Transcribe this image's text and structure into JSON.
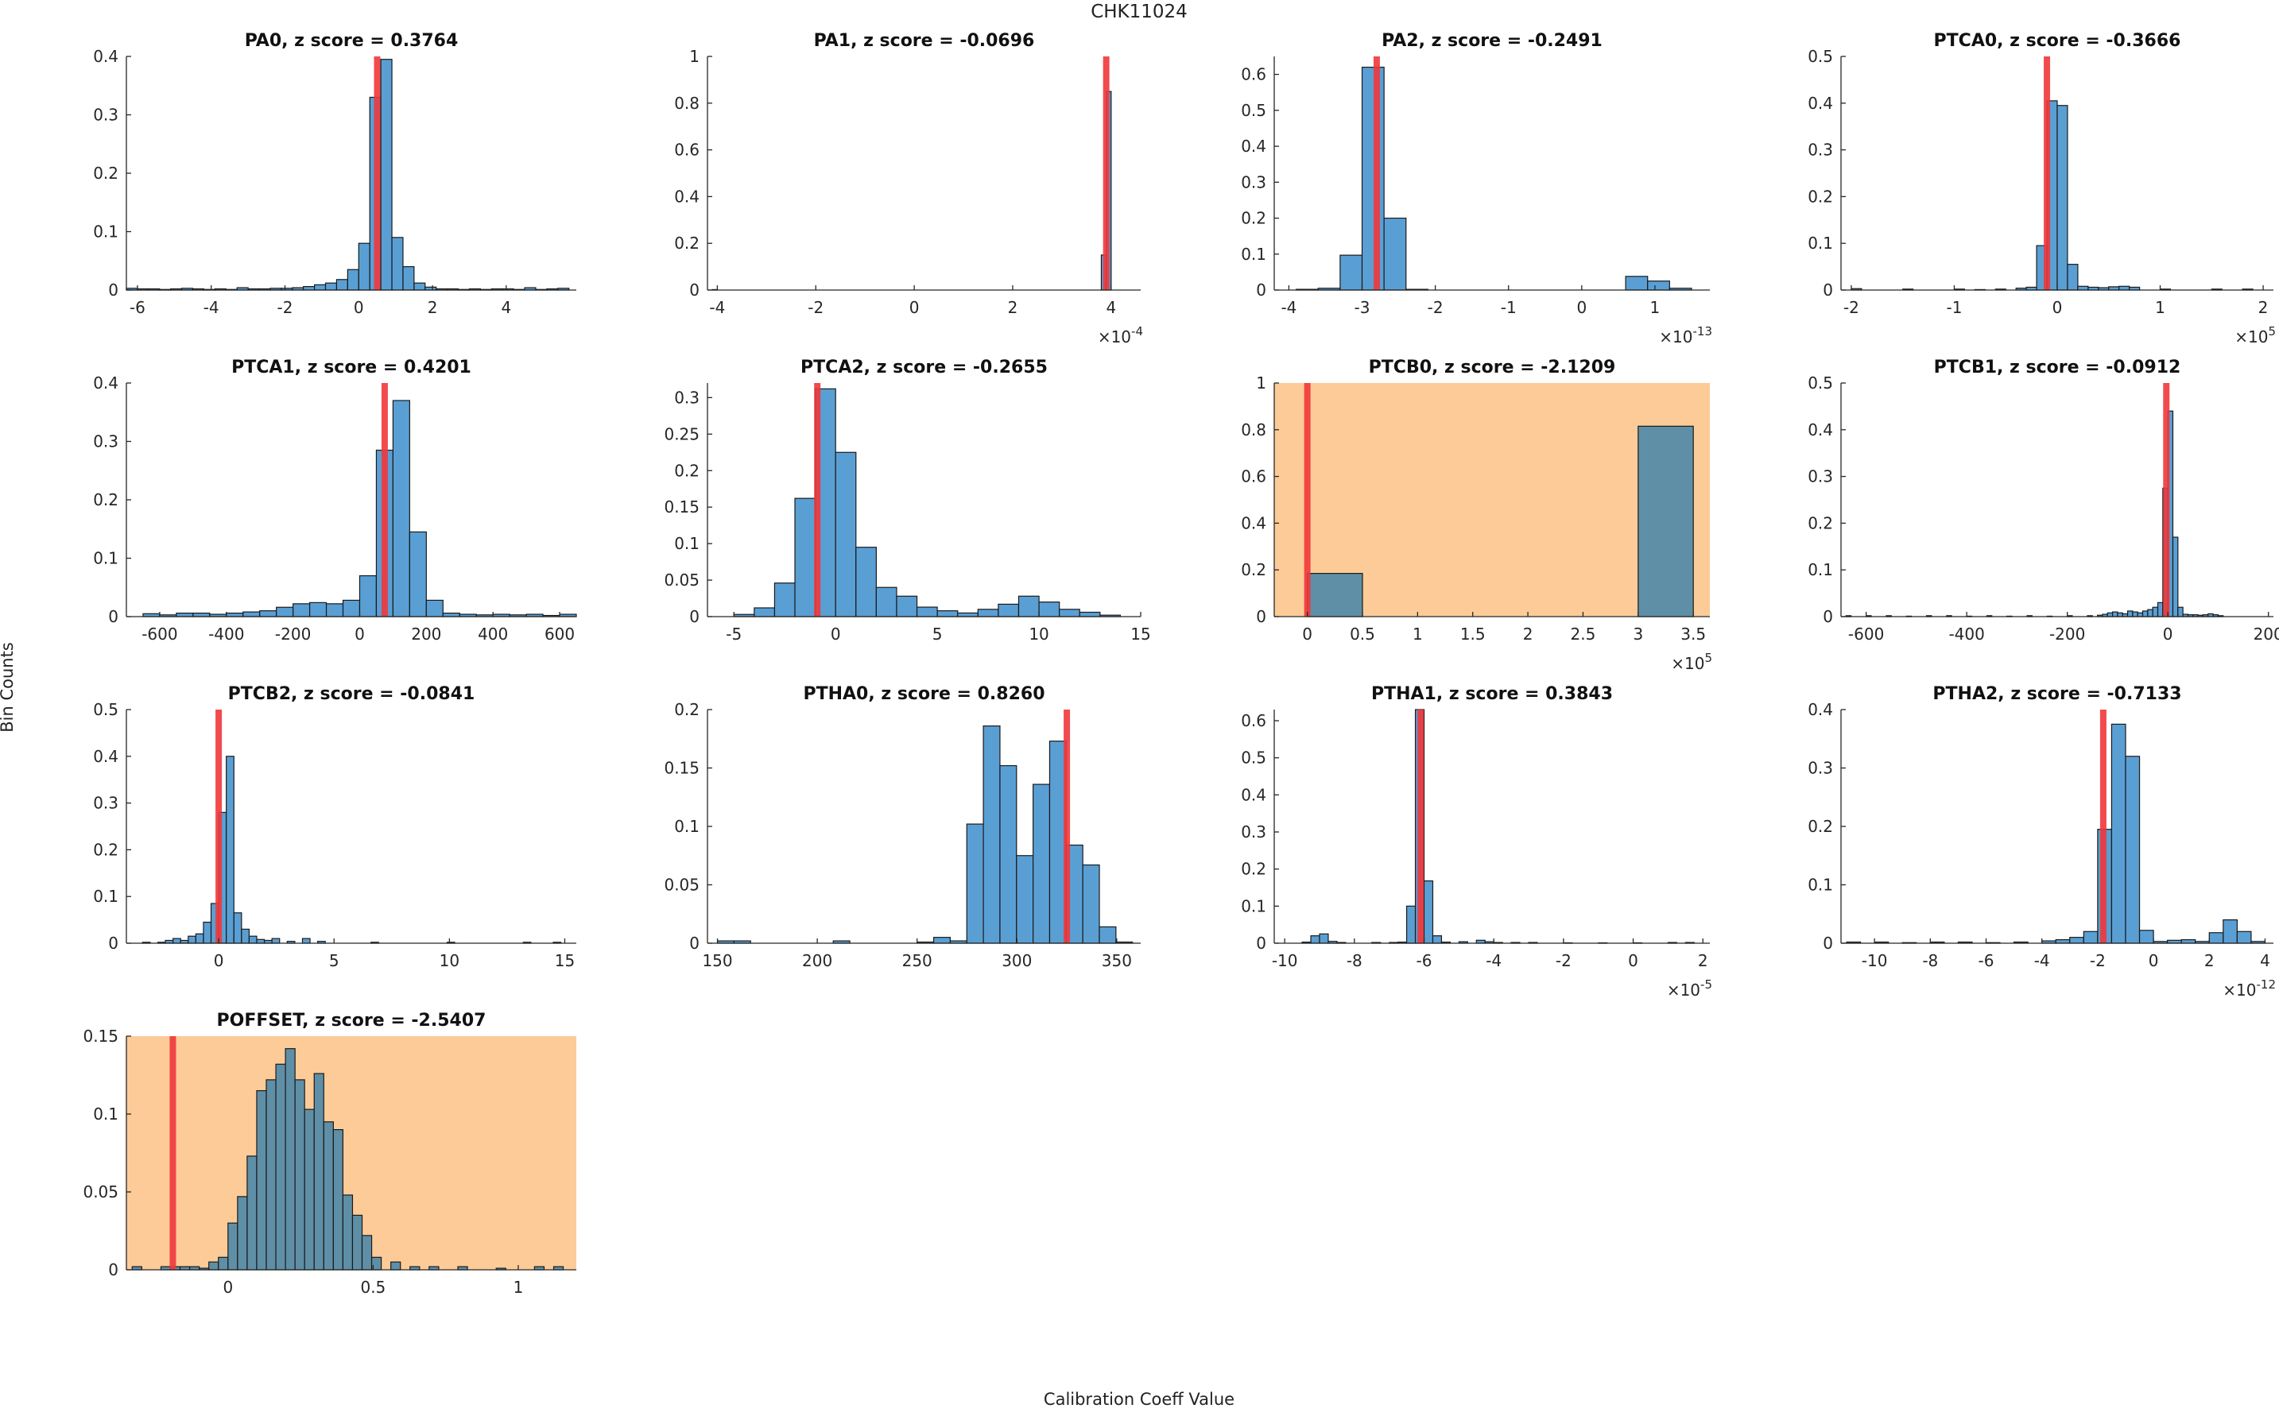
{
  "figure": {
    "title": "CHK11024",
    "xlabel": "Calibration Coeff Value",
    "ylabel": "Bin Counts"
  },
  "colors": {
    "bar_fill": "#5a9fd4",
    "bar_edge": "#1a1a1a",
    "highlight_bg": "#fdcb97",
    "highlight_bar": "#5f8fa6",
    "marker": "#f0373b"
  },
  "chart_data": [
    {
      "type": "bar",
      "title": "PA0, z score = 0.3764",
      "xlim": [
        -6.3,
        5.9
      ],
      "ylim": [
        0,
        0.4
      ],
      "xticks": [
        -6,
        -4,
        -2,
        0,
        2,
        4
      ],
      "xtick_labels": [
        "-6",
        "-4",
        "-2",
        "0",
        "2",
        "4"
      ],
      "yticks": [
        0,
        0.1,
        0.2,
        0.3,
        0.4
      ],
      "ytick_labels": [
        "0",
        "0.1",
        "0.2",
        "0.3",
        "0.4"
      ],
      "bin_width": 0.3,
      "bins_x": [
        -6.3,
        -6.0,
        -5.7,
        -5.4,
        -5.1,
        -4.8,
        -4.5,
        -4.2,
        -3.9,
        -3.6,
        -3.3,
        -3.0,
        -2.7,
        -2.4,
        -2.1,
        -1.8,
        -1.5,
        -1.2,
        -0.9,
        -0.6,
        -0.3,
        0.0,
        0.3,
        0.6,
        0.9,
        1.2,
        1.5,
        1.8,
        2.1,
        2.4,
        2.7,
        3.0,
        3.3,
        3.6,
        3.9,
        4.2,
        4.5,
        4.8,
        5.1,
        5.4
      ],
      "values": [
        0.003,
        0.002,
        0.002,
        0.001,
        0.002,
        0.003,
        0.002,
        0.001,
        0.002,
        0.001,
        0.004,
        0.002,
        0.002,
        0.003,
        0.003,
        0.004,
        0.006,
        0.009,
        0.012,
        0.018,
        0.035,
        0.08,
        0.33,
        0.395,
        0.09,
        0.04,
        0.012,
        0.005,
        0.002,
        0.002,
        0.001,
        0.002,
        0.001,
        0.002,
        0.002,
        0.001,
        0.004,
        0.001,
        0.002,
        0.003
      ],
      "marker_x": 0.5,
      "highlight": false
    },
    {
      "type": "bar",
      "title": "PA1, z score = -0.0696",
      "xlim": [
        -4.2,
        4.6
      ],
      "ylim": [
        0,
        1
      ],
      "xticks": [
        -4,
        -2,
        0,
        2,
        4
      ],
      "xtick_labels": [
        "-4",
        "-2",
        "0",
        "2",
        "4"
      ],
      "yticks": [
        0,
        0.2,
        0.4,
        0.6,
        0.8,
        1
      ],
      "ytick_labels": [
        "0",
        "0.2",
        "0.4",
        "0.6",
        "0.8",
        "1"
      ],
      "xexponent": "-4",
      "bin_width": 0.1,
      "bins_x": [
        -4.1,
        3.8,
        3.9
      ],
      "values": [
        0.002,
        0.15,
        0.85
      ],
      "marker_x": 3.9,
      "highlight": false
    },
    {
      "type": "bar",
      "title": "PA2, z score = -0.2491",
      "xlim": [
        -4.2,
        1.75
      ],
      "ylim": [
        0,
        0.65
      ],
      "xticks": [
        -4,
        -3,
        -2,
        -1,
        0,
        1
      ],
      "xtick_labels": [
        "-4",
        "-3",
        "-2",
        "-1",
        "0",
        "1"
      ],
      "yticks": [
        0,
        0.1,
        0.2,
        0.3,
        0.4,
        0.5,
        0.6
      ],
      "ytick_labels": [
        "0",
        "0.1",
        "0.2",
        "0.3",
        "0.4",
        "0.5",
        "0.6"
      ],
      "xexponent": "-13",
      "bin_width": 0.3,
      "bins_x": [
        -3.9,
        -3.6,
        -3.3,
        -3.0,
        -2.7,
        -2.4,
        0.6,
        0.9,
        1.2
      ],
      "values": [
        0.002,
        0.005,
        0.097,
        0.62,
        0.2,
        0.002,
        0.038,
        0.025,
        0.005
      ],
      "marker_x": -2.8,
      "highlight": false
    },
    {
      "type": "bar",
      "title": "PTCA0, z score = -0.3666",
      "xlim": [
        -2.1,
        2.1
      ],
      "ylim": [
        0,
        0.5
      ],
      "xticks": [
        -2,
        -1,
        0,
        1,
        2
      ],
      "xtick_labels": [
        "-2",
        "-1",
        "0",
        "1",
        "2"
      ],
      "yticks": [
        0,
        0.1,
        0.2,
        0.3,
        0.4,
        0.5
      ],
      "ytick_labels": [
        "0",
        "0.1",
        "0.2",
        "0.3",
        "0.4",
        "0.5"
      ],
      "xexponent": "5",
      "bin_width": 0.1,
      "bins_x": [
        -2.0,
        -1.5,
        -1.0,
        -0.8,
        -0.6,
        -0.4,
        -0.3,
        -0.2,
        -0.1,
        0.0,
        0.1,
        0.2,
        0.3,
        0.4,
        0.5,
        0.6,
        0.7,
        1.0,
        1.5,
        1.8
      ],
      "values": [
        0.003,
        0.002,
        0.002,
        0.001,
        0.002,
        0.004,
        0.006,
        0.095,
        0.405,
        0.395,
        0.055,
        0.008,
        0.006,
        0.005,
        0.007,
        0.008,
        0.006,
        0.002,
        0.002,
        0.002
      ],
      "marker_x": -0.1,
      "highlight": false
    },
    {
      "type": "bar",
      "title": "PTCA1, z score = 0.4201",
      "xlim": [
        -700,
        650
      ],
      "ylim": [
        0,
        0.4
      ],
      "xticks": [
        -600,
        -400,
        -200,
        0,
        200,
        400,
        600
      ],
      "xtick_labels": [
        "-600",
        "-400",
        "-200",
        "0",
        "200",
        "400",
        "600"
      ],
      "yticks": [
        0,
        0.1,
        0.2,
        0.3,
        0.4
      ],
      "ytick_labels": [
        "0",
        "0.1",
        "0.2",
        "0.3",
        "0.4"
      ],
      "bin_width": 50,
      "bins_x": [
        -650,
        -600,
        -550,
        -500,
        -450,
        -400,
        -350,
        -300,
        -250,
        -200,
        -150,
        -100,
        -50,
        0,
        50,
        100,
        150,
        200,
        250,
        300,
        350,
        400,
        450,
        500,
        550,
        600
      ],
      "values": [
        0.005,
        0.003,
        0.006,
        0.006,
        0.004,
        0.006,
        0.008,
        0.01,
        0.016,
        0.022,
        0.024,
        0.022,
        0.028,
        0.07,
        0.285,
        0.37,
        0.145,
        0.028,
        0.006,
        0.004,
        0.003,
        0.004,
        0.003,
        0.004,
        0.002,
        0.004
      ],
      "marker_x": 75,
      "highlight": false
    },
    {
      "type": "bar",
      "title": "PTCA2, z score = -0.2655",
      "xlim": [
        -6.3,
        15
      ],
      "ylim": [
        0,
        0.32
      ],
      "xticks": [
        -5,
        0,
        5,
        10,
        15
      ],
      "xtick_labels": [
        "-5",
        "0",
        "5",
        "10",
        "15"
      ],
      "yticks": [
        0,
        0.05,
        0.1,
        0.15,
        0.2,
        0.25,
        0.3
      ],
      "ytick_labels": [
        "0",
        "0.05",
        "0.1",
        "0.15",
        "0.2",
        "0.25",
        "0.3"
      ],
      "bin_width": 1,
      "bins_x": [
        -5,
        -4,
        -3,
        -2,
        -1,
        0,
        1,
        2,
        3,
        4,
        5,
        6,
        7,
        8,
        9,
        10,
        11,
        12,
        13
      ],
      "values": [
        0.003,
        0.012,
        0.046,
        0.162,
        0.312,
        0.225,
        0.095,
        0.04,
        0.028,
        0.013,
        0.008,
        0.005,
        0.01,
        0.017,
        0.028,
        0.02,
        0.01,
        0.006,
        0.002
      ],
      "marker_x": -0.9,
      "highlight": false
    },
    {
      "type": "bar",
      "title": "PTCB0, z score = -2.1209",
      "xlim": [
        -0.3,
        3.65
      ],
      "ylim": [
        0,
        1
      ],
      "xticks": [
        0,
        0.5,
        1,
        1.5,
        2,
        2.5,
        3,
        3.5
      ],
      "xtick_labels": [
        "0",
        "0.5",
        "1",
        "1.5",
        "2",
        "2.5",
        "3",
        "3.5"
      ],
      "yticks": [
        0,
        0.2,
        0.4,
        0.6,
        0.8,
        1
      ],
      "ytick_labels": [
        "0",
        "0.2",
        "0.4",
        "0.6",
        "0.8",
        "1"
      ],
      "xexponent": "5",
      "bin_width": 0.5,
      "bins_x": [
        0,
        3
      ],
      "values": [
        0.185,
        0.815
      ],
      "marker_x": 0,
      "highlight": true
    },
    {
      "type": "bar",
      "title": "PTCB1, z score = -0.0912",
      "xlim": [
        -650,
        210
      ],
      "ylim": [
        0,
        0.5
      ],
      "xticks": [
        -600,
        -400,
        -200,
        0,
        200
      ],
      "xtick_labels": [
        "-600",
        "-400",
        "-200",
        "0",
        "200"
      ],
      "yticks": [
        0,
        0.1,
        0.2,
        0.3,
        0.4,
        0.5
      ],
      "ytick_labels": [
        "0",
        "0.1",
        "0.2",
        "0.3",
        "0.4",
        "0.5"
      ],
      "bin_width": 10,
      "bins_x": [
        -640,
        -600,
        -560,
        -520,
        -480,
        -440,
        -400,
        -360,
        -320,
        -280,
        -240,
        -200,
        -160,
        -140,
        -130,
        -120,
        -110,
        -100,
        -90,
        -80,
        -70,
        -60,
        -50,
        -40,
        -30,
        -20,
        -10,
        0,
        10,
        20,
        30,
        40,
        50,
        60,
        70,
        80,
        90,
        100
      ],
      "values": [
        0.002,
        0.002,
        0.002,
        0.001,
        0.002,
        0.002,
        0.001,
        0.002,
        0.001,
        0.002,
        0.001,
        0.002,
        0.002,
        0.003,
        0.005,
        0.008,
        0.01,
        0.008,
        0.006,
        0.012,
        0.01,
        0.008,
        0.012,
        0.015,
        0.02,
        0.03,
        0.275,
        0.44,
        0.17,
        0.02,
        0.005,
        0.004,
        0.004,
        0.003,
        0.004,
        0.006,
        0.004,
        0.002
      ],
      "marker_x": -3,
      "highlight": false
    },
    {
      "type": "bar",
      "title": "PTCB2, z score = -0.0841",
      "xlim": [
        -4,
        15.5
      ],
      "ylim": [
        0,
        0.5
      ],
      "xticks": [
        0,
        5,
        10,
        15
      ],
      "xtick_labels": [
        "0",
        "5",
        "10",
        "15"
      ],
      "yticks": [
        0,
        0.1,
        0.2,
        0.3,
        0.4,
        0.5
      ],
      "ytick_labels": [
        "0",
        "0.1",
        "0.2",
        "0.3",
        "0.4",
        "0.5"
      ],
      "bin_width": 0.33,
      "bins_x": [
        -3.3,
        -2.64,
        -2.31,
        -1.98,
        -1.65,
        -1.32,
        -0.99,
        -0.66,
        -0.33,
        0,
        0.33,
        0.66,
        0.99,
        1.32,
        1.65,
        1.98,
        2.31,
        2.97,
        3.63,
        4.29,
        6.6,
        9.9,
        13.2,
        14.5
      ],
      "values": [
        0.002,
        0.002,
        0.006,
        0.01,
        0.006,
        0.015,
        0.02,
        0.045,
        0.085,
        0.28,
        0.4,
        0.065,
        0.03,
        0.015,
        0.008,
        0.006,
        0.01,
        0.004,
        0.01,
        0.004,
        0.002,
        0.002,
        0.002,
        0.002
      ],
      "marker_x": 0,
      "highlight": false
    },
    {
      "type": "bar",
      "title": "PTHA0, z score = 0.8260",
      "xlim": [
        145,
        362
      ],
      "ylim": [
        0,
        0.2
      ],
      "xticks": [
        150,
        200,
        250,
        300,
        350
      ],
      "xtick_labels": [
        "150",
        "200",
        "250",
        "300",
        "350"
      ],
      "yticks": [
        0,
        0.05,
        0.1,
        0.15,
        0.2
      ],
      "ytick_labels": [
        "0",
        "0.05",
        "0.1",
        "0.15",
        "0.2"
      ],
      "bin_width": 8.3,
      "bins_x": [
        150,
        158.3,
        208,
        250,
        258.3,
        266.6,
        274.9,
        283.2,
        291.5,
        299.8,
        308.1,
        316.4,
        324.7,
        333,
        341.3,
        349.6
      ],
      "values": [
        0.002,
        0.002,
        0.002,
        0.001,
        0.005,
        0.002,
        0.102,
        0.186,
        0.152,
        0.075,
        0.136,
        0.173,
        0.084,
        0.067,
        0.014,
        0.001
      ],
      "marker_x": 325,
      "highlight": false
    },
    {
      "type": "bar",
      "title": "PTHA1, z score = 0.3843",
      "xlim": [
        -10.3,
        2.2
      ],
      "ylim": [
        0,
        0.63
      ],
      "xticks": [
        -10,
        -8,
        -6,
        -4,
        -2,
        0,
        2
      ],
      "xtick_labels": [
        "-10",
        "-8",
        "-6",
        "-4",
        "-2",
        "0",
        "2"
      ],
      "yticks": [
        0,
        0.1,
        0.2,
        0.3,
        0.4,
        0.5,
        0.6
      ],
      "ytick_labels": [
        "0",
        "0.1",
        "0.2",
        "0.3",
        "0.4",
        "0.5",
        "0.6"
      ],
      "xexponent": "-5",
      "bin_width": 0.25,
      "bins_x": [
        -9.5,
        -9.25,
        -9.0,
        -8.75,
        -8.5,
        -7.5,
        -7.0,
        -6.75,
        -6.5,
        -6.25,
        -6.0,
        -5.75,
        -5.5,
        -5.0,
        -4.5,
        -4.25,
        -4.0,
        -3.5,
        -3.0,
        -2.0,
        -1.0,
        0.0,
        1.0,
        1.5
      ],
      "values": [
        0.003,
        0.02,
        0.025,
        0.005,
        0.002,
        0.002,
        0.002,
        0.003,
        0.1,
        0.63,
        0.168,
        0.02,
        0.003,
        0.004,
        0.008,
        0.004,
        0.002,
        0.002,
        0.002,
        0.001,
        0.001,
        0.001,
        0.002,
        0.002
      ],
      "marker_x": -6.1,
      "highlight": false
    },
    {
      "type": "bar",
      "title": "PTHA2, z score = -0.7133",
      "xlim": [
        -11.2,
        4.3
      ],
      "ylim": [
        0,
        0.4
      ],
      "xticks": [
        -10,
        -8,
        -6,
        -4,
        -2,
        0,
        2,
        4
      ],
      "xtick_labels": [
        "-10",
        "-8",
        "-6",
        "-4",
        "-2",
        "0",
        "2",
        "4"
      ],
      "yticks": [
        0,
        0.1,
        0.2,
        0.3,
        0.4
      ],
      "ytick_labels": [
        "0",
        "0.1",
        "0.2",
        "0.3",
        "0.4"
      ],
      "xexponent": "-12",
      "bin_width": 0.5,
      "bins_x": [
        -11,
        -10,
        -9,
        -8,
        -7,
        -6,
        -5,
        -4,
        -3.5,
        -3,
        -2.5,
        -2,
        -1.5,
        -1,
        -0.5,
        0,
        0.5,
        1,
        1.5,
        2,
        2.5,
        3,
        3.5
      ],
      "values": [
        0.002,
        0.002,
        0.001,
        0.002,
        0.002,
        0.001,
        0.002,
        0.004,
        0.006,
        0.01,
        0.02,
        0.195,
        0.375,
        0.32,
        0.022,
        0.003,
        0.005,
        0.006,
        0.003,
        0.018,
        0.04,
        0.02,
        0.003
      ],
      "marker_x": -1.8,
      "highlight": false
    },
    {
      "type": "bar",
      "title": "POFFSET, z score = -2.5407",
      "xlim": [
        -0.35,
        1.2
      ],
      "ylim": [
        0,
        0.15
      ],
      "xticks": [
        0,
        0.5,
        1
      ],
      "xtick_labels": [
        "0",
        "0.5",
        "1"
      ],
      "yticks": [
        0,
        0.05,
        0.1,
        0.15
      ],
      "ytick_labels": [
        "0",
        "0.05",
        "0.1",
        "0.15"
      ],
      "bin_width": 0.033,
      "bins_x": [
        -0.33,
        -0.231,
        -0.198,
        -0.165,
        -0.132,
        -0.099,
        -0.066,
        -0.033,
        0.0,
        0.033,
        0.066,
        0.099,
        0.132,
        0.165,
        0.198,
        0.231,
        0.264,
        0.297,
        0.33,
        0.363,
        0.396,
        0.429,
        0.462,
        0.495,
        0.561,
        0.627,
        0.693,
        0.792,
        0.924,
        1.056,
        1.122
      ],
      "values": [
        0.002,
        0.002,
        0.002,
        0.002,
        0.002,
        0.001,
        0.005,
        0.008,
        0.03,
        0.047,
        0.073,
        0.115,
        0.122,
        0.132,
        0.142,
        0.122,
        0.103,
        0.126,
        0.095,
        0.09,
        0.048,
        0.035,
        0.022,
        0.008,
        0.005,
        0.002,
        0.002,
        0.002,
        0.001,
        0.002,
        0.002
      ],
      "marker_x": -0.19,
      "highlight": true
    }
  ]
}
